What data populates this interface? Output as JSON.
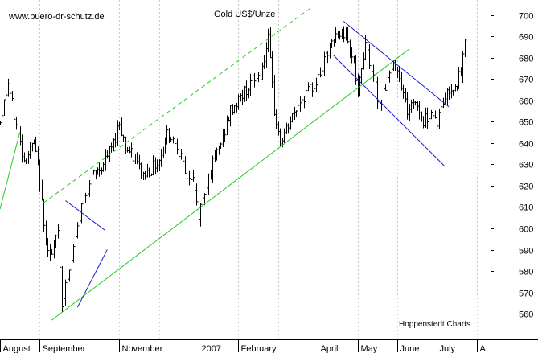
{
  "chart_data": {
    "type": "bar",
    "style": "ohlc",
    "title": "Gold US$/Unze",
    "source_url": "www.buero-dr-schutz.de",
    "credit": "Hoppenstedt Charts",
    "ylim": [
      548,
      707
    ],
    "y_ticks": [
      560,
      570,
      580,
      590,
      600,
      610,
      620,
      630,
      640,
      650,
      660,
      670,
      680,
      690,
      700
    ],
    "x_labels": [
      {
        "label": "August",
        "pos": 0.0
      },
      {
        "label": "September",
        "pos": 1.0
      },
      {
        "label": "November",
        "pos": 3.0
      },
      {
        "label": "2007",
        "pos": 5.0
      },
      {
        "label": "February",
        "pos": 6.0
      },
      {
        "label": "April",
        "pos": 8.0
      },
      {
        "label": "May",
        "pos": 9.0
      },
      {
        "label": "June",
        "pos": 10.0
      },
      {
        "label": "July",
        "pos": 11.0
      },
      {
        "label": "A",
        "pos": 12.0
      }
    ],
    "x_range": [
      0,
      12.35
    ],
    "vertical_grid": [
      1.0,
      2.0,
      3.0,
      4.0,
      5.0,
      6.0,
      7.0,
      8.0,
      9.0,
      10.0,
      11.0,
      12.0
    ],
    "colors": {
      "bars": "#000000",
      "channel_up": "#22cc22",
      "channel_down": "#1a1acc",
      "grid": "#c8c8c8"
    },
    "anchors": [
      [
        0.0,
        650
      ],
      [
        0.2,
        668
      ],
      [
        0.4,
        648
      ],
      [
        0.6,
        632
      ],
      [
        0.85,
        640
      ],
      [
        1.0,
        622
      ],
      [
        1.1,
        600
      ],
      [
        1.28,
        585
      ],
      [
        1.45,
        600
      ],
      [
        1.55,
        565
      ],
      [
        1.75,
        580
      ],
      [
        1.95,
        600
      ],
      [
        2.1,
        615
      ],
      [
        2.35,
        625
      ],
      [
        2.6,
        630
      ],
      [
        2.85,
        640
      ],
      [
        3.0,
        650
      ],
      [
        3.15,
        638
      ],
      [
        3.4,
        632
      ],
      [
        3.6,
        625
      ],
      [
        3.8,
        628
      ],
      [
        4.0,
        632
      ],
      [
        4.2,
        645
      ],
      [
        4.45,
        640
      ],
      [
        4.65,
        625
      ],
      [
        4.85,
        623
      ],
      [
        5.0,
        606
      ],
      [
        5.25,
        625
      ],
      [
        5.55,
        640
      ],
      [
        5.8,
        655
      ],
      [
        6.0,
        660
      ],
      [
        6.3,
        668
      ],
      [
        6.55,
        672
      ],
      [
        6.75,
        688
      ],
      [
        6.9,
        655
      ],
      [
        7.05,
        640
      ],
      [
        7.3,
        650
      ],
      [
        7.55,
        660
      ],
      [
        7.8,
        665
      ],
      [
        8.0,
        670
      ],
      [
        8.2,
        680
      ],
      [
        8.45,
        690
      ],
      [
        8.7,
        692
      ],
      [
        8.9,
        678
      ],
      [
        9.0,
        662
      ],
      [
        9.2,
        688
      ],
      [
        9.4,
        670
      ],
      [
        9.55,
        658
      ],
      [
        9.75,
        670
      ],
      [
        9.95,
        678
      ],
      [
        10.05,
        672
      ],
      [
        10.25,
        655
      ],
      [
        10.45,
        660
      ],
      [
        10.65,
        650
      ],
      [
        10.85,
        655
      ],
      [
        11.0,
        650
      ],
      [
        11.2,
        662
      ],
      [
        11.45,
        668
      ],
      [
        11.6,
        672
      ],
      [
        11.7,
        688
      ]
    ],
    "trendlines": [
      {
        "name": "support-left",
        "color": "up",
        "dashed": false,
        "from": [
          0.0,
          609
        ],
        "to": [
          0.5,
          645
        ]
      },
      {
        "name": "main-support",
        "color": "up",
        "dashed": false,
        "from": [
          1.3,
          557
        ],
        "to": [
          10.3,
          684
        ]
      },
      {
        "name": "upper-channel",
        "color": "up",
        "dashed": true,
        "from": [
          1.1,
          612
        ],
        "to": [
          7.8,
          703
        ]
      },
      {
        "name": "wedge-top",
        "color": "down",
        "dashed": false,
        "from": [
          1.65,
          613
        ],
        "to": [
          2.65,
          599
        ]
      },
      {
        "name": "wedge-bottom",
        "color": "down",
        "dashed": false,
        "from": [
          1.95,
          563
        ],
        "to": [
          2.7,
          590
        ]
      },
      {
        "name": "down-channel-top",
        "color": "down",
        "dashed": false,
        "from": [
          8.65,
          697
        ],
        "to": [
          11.3,
          657
        ]
      },
      {
        "name": "down-channel-bottom",
        "color": "down",
        "dashed": false,
        "from": [
          8.4,
          681
        ],
        "to": [
          11.2,
          629
        ]
      }
    ]
  }
}
